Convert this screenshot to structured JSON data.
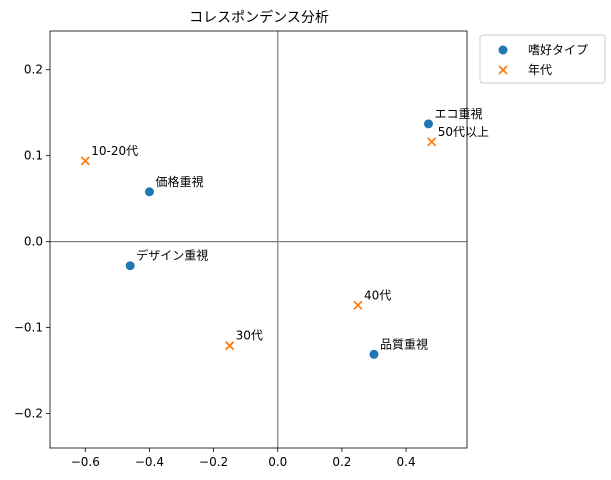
{
  "chart_data": {
    "type": "scatter",
    "title": "コレスポンデンス分析",
    "xlabel": "",
    "ylabel": "",
    "xlim": [
      -0.71,
      0.59
    ],
    "ylim": [
      -0.24,
      0.245
    ],
    "xticks": [
      -0.6,
      -0.4,
      -0.2,
      0.0,
      0.2,
      0.4
    ],
    "xtick_labels": [
      "−0.6",
      "−0.4",
      "−0.2",
      "0.0",
      "0.2",
      "0.4"
    ],
    "yticks": [
      -0.2,
      -0.1,
      0.0,
      0.1,
      0.2
    ],
    "ytick_labels": [
      "−0.2",
      "−0.1",
      "0.0",
      "0.1",
      "0.2"
    ],
    "reference_lines": {
      "x": 0,
      "y": 0,
      "color": "#808080"
    },
    "grid": false,
    "legend_position": "outside-upper-right",
    "series": [
      {
        "name": "嗜好タイプ",
        "marker": "circle",
        "color": "#1f77b4",
        "points": [
          {
            "label": "エコ重視",
            "x": 0.47,
            "y": 0.137
          },
          {
            "label": "価格重視",
            "x": -0.4,
            "y": 0.058
          },
          {
            "label": "デザイン重視",
            "x": -0.46,
            "y": -0.028
          },
          {
            "label": "品質重視",
            "x": 0.3,
            "y": -0.131
          }
        ]
      },
      {
        "name": "年代",
        "marker": "x",
        "color": "#ff7f0e",
        "points": [
          {
            "label": "10-20代",
            "x": -0.6,
            "y": 0.094
          },
          {
            "label": "50代以上",
            "x": 0.48,
            "y": 0.116
          },
          {
            "label": "30代",
            "x": -0.15,
            "y": -0.121
          },
          {
            "label": "40代",
            "x": 0.25,
            "y": -0.074
          }
        ]
      }
    ]
  }
}
